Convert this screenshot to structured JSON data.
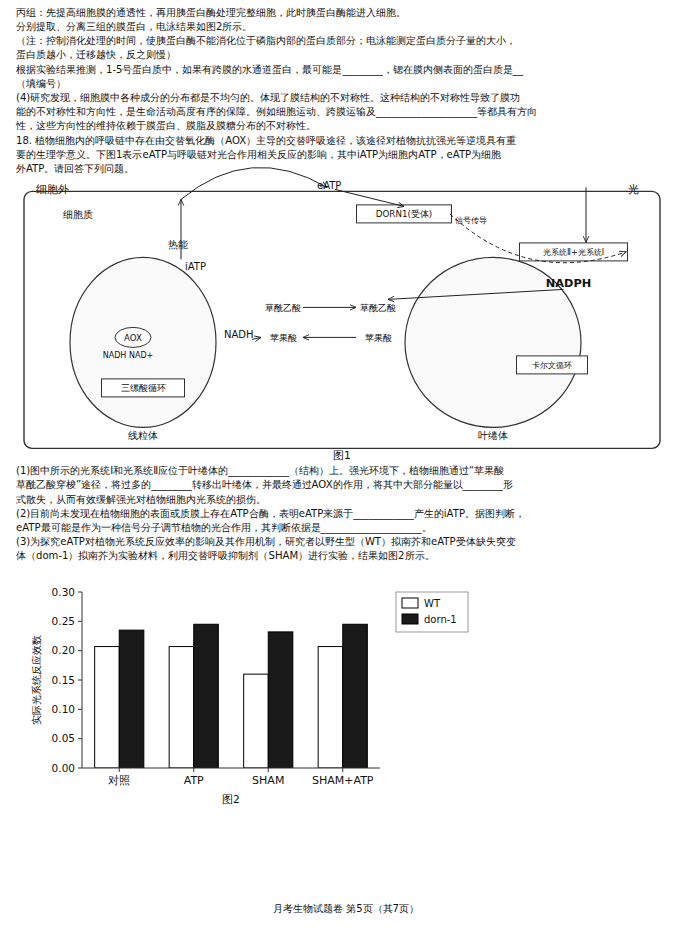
{
  "chart_data": {
    "type": "bar",
    "title": "图2",
    "categories": [
      "对照",
      "ATP",
      "SHAM",
      "SHAM+ATP"
    ],
    "series": [
      {
        "name": "WT",
        "color": "#ffffff",
        "values": [
          0.207,
          0.207,
          0.16,
          0.207
        ]
      },
      {
        "name": "dorn-1",
        "color": "#1a1a1a",
        "values": [
          0.235,
          0.245,
          0.232,
          0.245
        ]
      }
    ],
    "ylabel": "实际光系统反应效数",
    "ylim": [
      0.0,
      0.3
    ],
    "yticks": [
      {
        "value": 0.0,
        "label": "0.00"
      },
      {
        "value": 0.05,
        "label": "0.05"
      },
      {
        "value": 0.1,
        "label": "0.10"
      },
      {
        "value": 0.15,
        "label": "0.15"
      },
      {
        "value": 0.2,
        "label": "0.20"
      },
      {
        "value": 0.25,
        "label": "0.25"
      },
      {
        "value": 0.3,
        "label": "0.30"
      }
    ],
    "legend": "upper right",
    "grid": false,
    "annotations": [
      "丙组：先提高细胞膜的通透性，再用胰蛋白酶处理完整细胞，此时胰蛋白酶能进入细胞。",
      "分别提取、分离三组的膜蛋白，电泳结果如图2所示。",
      "（注：控制消化处理的时间，使胰蛋白酶不能消化位于磷脂内部的蛋白质部分；电泳能测定蛋白质分子量的大小，",
      "蛋白质越小，迁移越快，反之则慢）",
      "根据实验结果推测，1-5号蛋白质中，如果有跨膜的水通道蛋白，最可能是________，锶在膜内侧表面的蛋白质是__",
      "（填编号）",
      "(4)研究发现，细胞膜中各种成分的分布都是不均匀的。体现了膜结构的不对称性。这种结构的不对称性导致了膜功",
      "能的不对称性和方向性，是生命活动高度有序的保障。例如细胞运动、跨膜运输及____________________等都具有方向",
      "性，这些方向性的维持依赖于膜蛋白、膜脂及膜糖分布的不对称性。",
      "18. 植物细胞内的呼吸链中存在由交替氧化酶（AOX）主导的交替呼吸途径，该途径对植物抗抗强光等逆境具有重",
      "要的生理学意义。下图1表示eATP与呼吸链对光合作用相关反应的影响，其中iATP为细胞内ATP，eATP为细胞",
      "外ATP。请回答下列问题。",
      "细胞外",
      "光",
      "eATP",
      "DORN1(受体)",
      "光系统Ⅱ+光系统Ⅰ",
      "信号传导",
      "NADPH",
      "线粒体",
      "叶绻体",
      "细胞质",
      "AOX",
      "NADH NAD+",
      "三缧酸循环",
      "卡尔文循环",
      "热能",
      "iATP",
      "NADH",
      "草酰乙酸",
      "苹果酸",
      "草酰乙酸",
      "苹果酸",
      "图1",
      "(1)图中所示的光系统Ⅰ和光系统Ⅱ应位于叶绻体的____________（结构）上。强光环境下，植物细胞通过“苹果酸",
      "草酰乙酸穿梭”途径，将过多的________转移出叶绻体，并最终通过AOX的作用，将其中大部分能量以________形",
      "式散失，从而有效缓解强光对植物细胞内光系统的损伤。",
      "(2)目前尚未发现在植物细胞的表面或质膜上存在ATP合酶，表明eATP来源于____________产生的iATP。据图判断，",
      "eATP最可能是作为一种信号分子调节植物的光合作用，其判断依据是____________________。",
      "(3)为探究eATP对植物光系统反应效率的影响及其作用机制，研究者以野生型（WT）拟南芥和eATP受体缺失突变",
      "体（dom-1）拟南芥为实验材料，利用交替呼吸抑制剂（SHAM）进行实验，结果如图2所示。",
      "月考生物试题卷   第5页（其7页）"
    ]
  }
}
